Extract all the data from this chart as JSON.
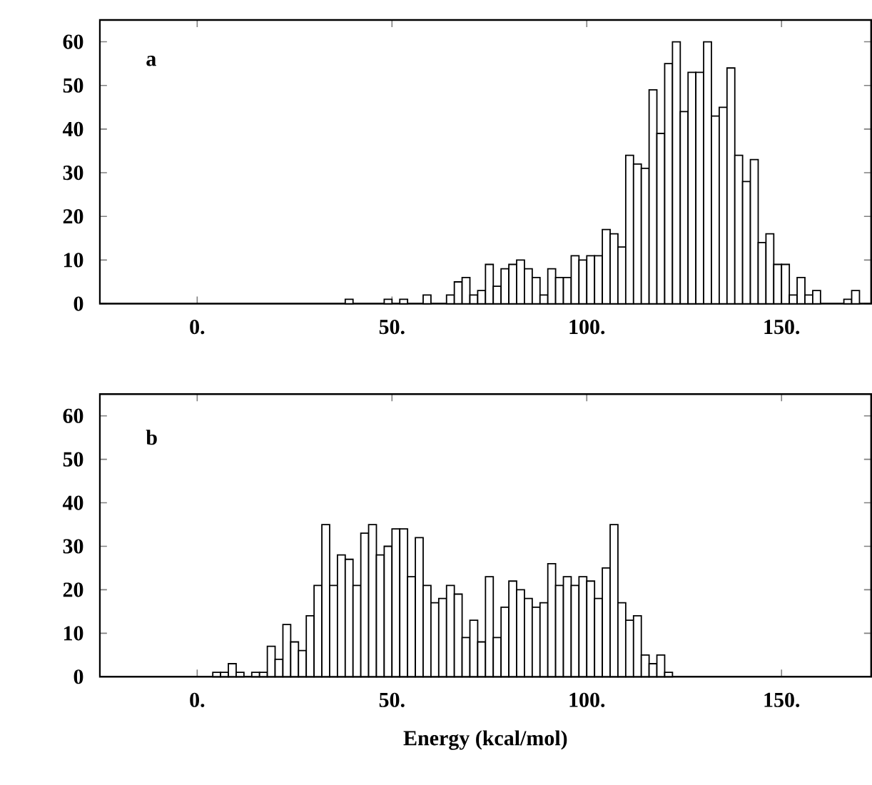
{
  "chart_data": [
    {
      "type": "histogram",
      "color": "#ffffff",
      "bins": [
        38,
        40,
        42,
        44,
        46,
        48,
        50,
        52,
        54,
        56,
        58,
        60,
        62,
        64,
        66,
        68,
        70,
        72,
        74,
        76,
        78,
        80,
        82,
        84,
        86,
        88,
        90,
        92,
        94,
        96,
        98,
        100,
        102,
        104,
        106,
        108,
        110,
        112,
        114,
        116,
        118,
        120,
        122,
        124,
        126,
        128,
        130,
        132,
        134,
        136,
        138,
        140,
        142,
        144,
        146,
        148,
        150,
        152,
        154,
        156,
        158,
        160,
        162,
        164,
        166,
        168,
        170
      ],
      "values": [
        1,
        null,
        null,
        null,
        null,
        1,
        null,
        1,
        null,
        null,
        2,
        null,
        null,
        2,
        5,
        6,
        2,
        3,
        9,
        4,
        8,
        9,
        10,
        8,
        6,
        2,
        8,
        6,
        6,
        11,
        10,
        11,
        11,
        17,
        16,
        13,
        34,
        32,
        31,
        49,
        39,
        55,
        60,
        44,
        53,
        53,
        60,
        43,
        45,
        54,
        34,
        28,
        33,
        14,
        16,
        9,
        9,
        2,
        6,
        2,
        3,
        null,
        null,
        null,
        1,
        3
      ],
      "xlim": [
        -25,
        173
      ],
      "ylim": [
        0,
        65
      ],
      "xticks": [
        {
          "value": 0,
          "label": "0."
        },
        {
          "value": 50,
          "label": "50."
        },
        {
          "value": 100,
          "label": "100."
        },
        {
          "value": 150,
          "label": "150."
        }
      ],
      "yticks": [
        0,
        10,
        20,
        30,
        40,
        50,
        60
      ],
      "annotations": [
        "a"
      ]
    },
    {
      "type": "histogram",
      "color": "#ffffff",
      "bins": [
        4,
        6,
        8,
        10,
        12,
        14,
        16,
        18,
        20,
        22,
        24,
        26,
        28,
        30,
        32,
        34,
        36,
        38,
        40,
        42,
        44,
        46,
        48,
        50,
        52,
        54,
        56,
        58,
        60,
        62,
        64,
        66,
        68,
        70,
        72,
        74,
        76,
        78,
        80,
        82,
        84,
        86,
        88,
        90,
        92,
        94,
        96,
        98,
        100,
        102,
        104,
        106,
        108,
        110,
        112,
        114,
        116,
        118,
        120,
        122
      ],
      "values": [
        1,
        1,
        3,
        1,
        null,
        1,
        1,
        7,
        4,
        12,
        8,
        6,
        14,
        21,
        35,
        21,
        28,
        27,
        21,
        33,
        35,
        28,
        30,
        34,
        34,
        23,
        32,
        21,
        17,
        18,
        21,
        19,
        9,
        13,
        8,
        23,
        9,
        16,
        22,
        20,
        18,
        16,
        17,
        26,
        21,
        23,
        21,
        23,
        22,
        18,
        25,
        35,
        17,
        13,
        14,
        5,
        3,
        5,
        1
      ],
      "xlim": [
        -25,
        173
      ],
      "ylim": [
        0,
        65
      ],
      "xticks": [
        {
          "value": 0,
          "label": "0."
        },
        {
          "value": 50,
          "label": "50."
        },
        {
          "value": 100,
          "label": "100."
        },
        {
          "value": 150,
          "label": "150."
        }
      ],
      "yticks": [
        0,
        10,
        20,
        30,
        40,
        50,
        60
      ],
      "xlabel": "Energy (kcal/mol)",
      "annotations": [
        "b"
      ]
    }
  ]
}
